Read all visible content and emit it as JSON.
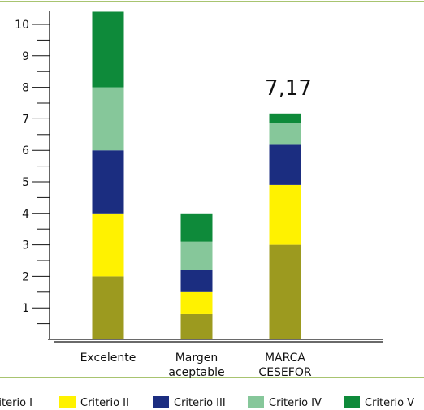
{
  "chart_data": {
    "type": "bar",
    "stacked": true,
    "categories": [
      [
        "Excelente"
      ],
      [
        "Margen",
        "aceptable"
      ],
      [
        "MARCA",
        "CESEFOR"
      ]
    ],
    "y_ticks": [
      "1",
      "2",
      "3",
      "4",
      "5",
      "6",
      "7",
      "8",
      "9",
      "10"
    ],
    "ylim": [
      0,
      10.5
    ],
    "series": [
      {
        "name": "Criterio I",
        "color": "#9c9a1f",
        "values": [
          2,
          0.8,
          3
        ]
      },
      {
        "name": "Criterio II",
        "color": "#fff200",
        "values": [
          2,
          0.7,
          1.9
        ]
      },
      {
        "name": "Criterio III",
        "color": "#1b2d80",
        "values": [
          2,
          0.7,
          1.3
        ]
      },
      {
        "name": "Criterio IV",
        "color": "#86c79a",
        "values": [
          2,
          0.9,
          0.67
        ]
      },
      {
        "name": "Criterio V",
        "color": "#0e8a3a",
        "values": [
          2.4,
          0.9,
          0.3
        ]
      }
    ],
    "annotations": [
      {
        "category_index": 2,
        "text": "7,17"
      }
    ],
    "legend": "bottom",
    "grid": false
  }
}
